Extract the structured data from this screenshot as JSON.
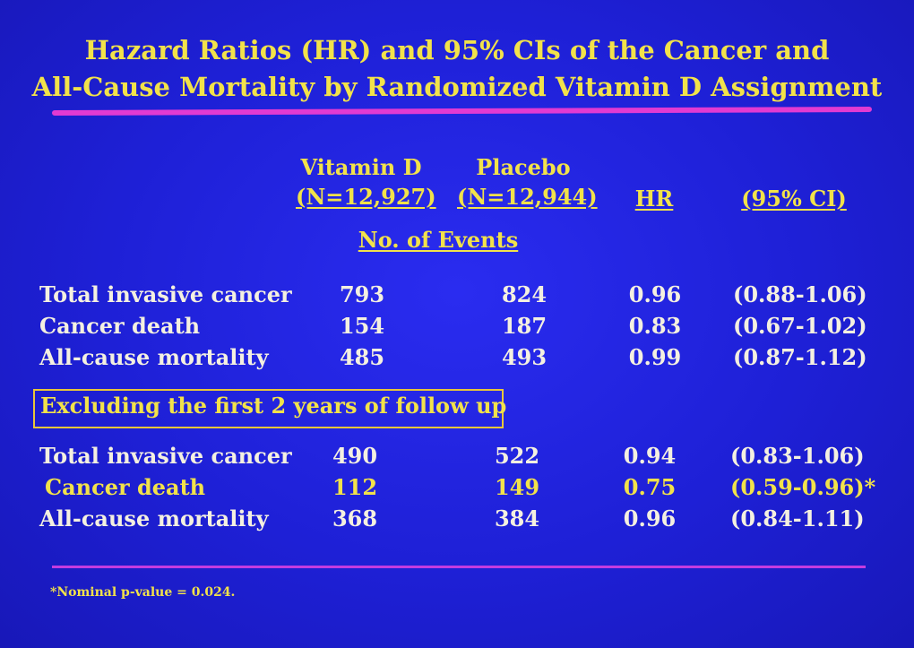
{
  "title": {
    "line1": "Hazard Ratios (HR) and 95% CIs of the Cancer and",
    "line2": "All-Cause Mortality by Randomized Vitamin D Assignment"
  },
  "headers": {
    "vitd_name": "Vitamin D",
    "vitd_n": "(N=12,927)",
    "placebo_name": "Placebo",
    "placebo_n": "(N=12,944)",
    "hr": "HR",
    "ci": "(95% CI)",
    "events": "No. of Events"
  },
  "main_rows": [
    {
      "label": "Total invasive cancer",
      "vitd": "793",
      "placebo": "824",
      "hr": "0.96",
      "ci": "(0.88-1.06)"
    },
    {
      "label": "Cancer death",
      "vitd": "154",
      "placebo": "187",
      "hr": "0.83",
      "ci": "(0.67-1.02)"
    },
    {
      "label": "All-cause mortality",
      "vitd": "485",
      "placebo": "493",
      "hr": "0.99",
      "ci": "(0.87-1.12)"
    }
  ],
  "excluding_label": "Excluding the first 2 years of follow up",
  "excl_rows": [
    {
      "label": "Total invasive cancer",
      "vitd": "490",
      "placebo": "522",
      "hr": "0.94",
      "ci": "(0.83-1.06)"
    },
    {
      "label": "Cancer death",
      "vitd": "112",
      "placebo": "149",
      "hr": "0.75",
      "ci": "(0.59-0.96)*"
    },
    {
      "label": "All-cause mortality",
      "vitd": "368",
      "placebo": "384",
      "hr": "0.96",
      "ci": "(0.84-1.11)"
    }
  ],
  "footnote": "*Nominal p-value = 0.024.",
  "colors": {
    "background": "#2020d8",
    "title": "#f2e24a",
    "rule": "#e23ad2",
    "text": "#f4f0e0"
  }
}
